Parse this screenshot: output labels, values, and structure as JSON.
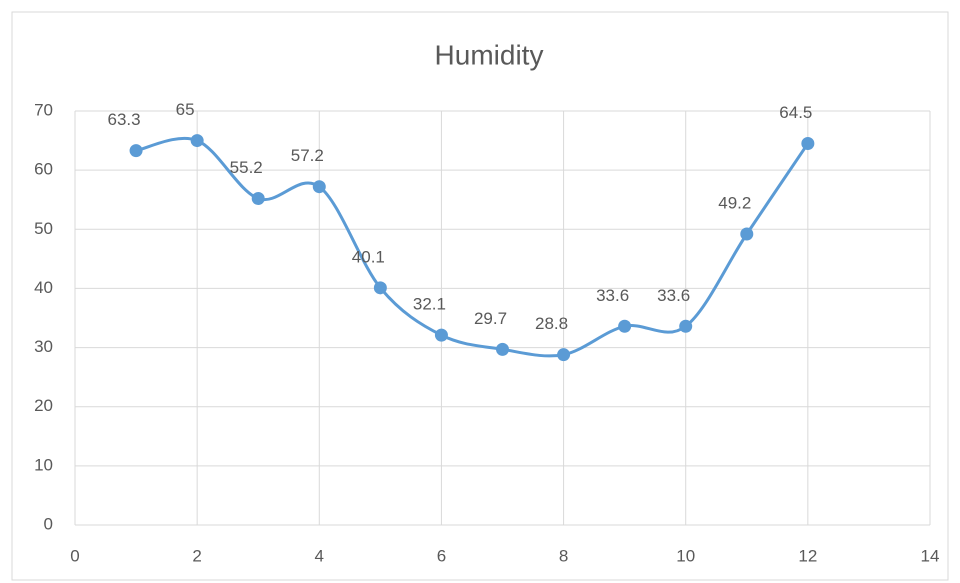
{
  "chart_data": {
    "type": "scatter_smooth",
    "title": "Humidity",
    "x": [
      1,
      2,
      3,
      4,
      5,
      6,
      7,
      8,
      9,
      10,
      11,
      12
    ],
    "values": [
      63.3,
      65,
      55.2,
      57.2,
      40.1,
      32.1,
      29.7,
      28.8,
      33.6,
      33.6,
      49.2,
      64.5
    ],
    "color": "#5b9bd5",
    "xlim": [
      0,
      14
    ],
    "xticks": [
      0,
      2,
      4,
      6,
      8,
      10,
      12,
      14
    ],
    "ylim": [
      0,
      70
    ],
    "yticks": [
      0,
      10,
      20,
      30,
      40,
      50,
      60,
      70
    ],
    "grid": true,
    "data_labels": true
  }
}
